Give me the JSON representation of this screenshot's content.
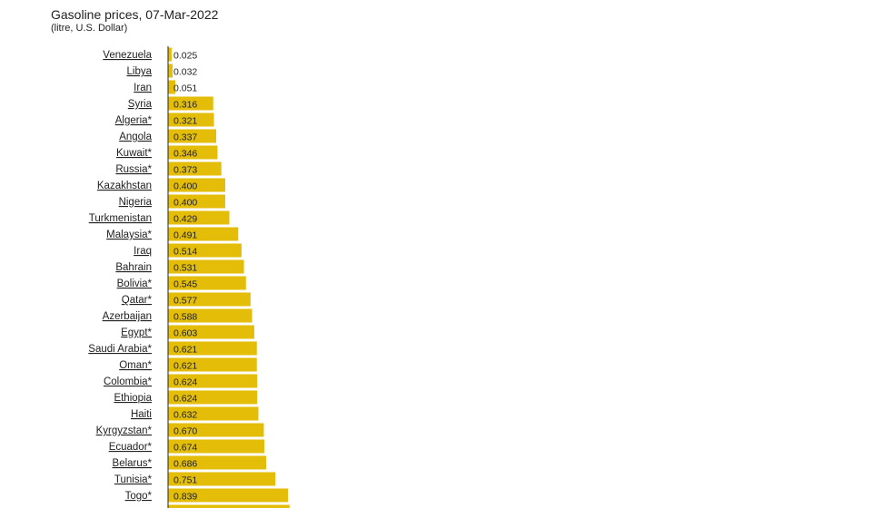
{
  "chart_data": {
    "type": "bar",
    "orientation": "horizontal",
    "title": "Gasoline prices, 07-Mar-2022",
    "subtitle": "(litre, U.S. Dollar)",
    "bar_color": "#e3bd08",
    "axis_color": "#222222",
    "categories": [
      "Venezuela",
      "Libya",
      "Iran",
      "Syria",
      "Algeria*",
      "Angola",
      "Kuwait*",
      "Russia*",
      "Kazakhstan",
      "Nigeria",
      "Turkmenistan",
      "Malaysia*",
      "Iraq",
      "Bahrain",
      "Bolivia*",
      "Qatar*",
      "Azerbaijan",
      "Egypt*",
      "Saudi Arabia*",
      "Oman*",
      "Colombia*",
      "Ethiopia",
      "Haiti",
      "Kyrgyzstan*",
      "Ecuador*",
      "Belarus*",
      "Tunisia*",
      "Togo*"
    ],
    "value_labels": [
      "0.025",
      "0.032",
      "0.051",
      "0.316",
      "0.321",
      "0.337",
      "0.346",
      "0.373",
      "0.400",
      "0.400",
      "0.429",
      "0.491",
      "0.514",
      "0.531",
      "0.545",
      "0.577",
      "0.588",
      "0.603",
      "0.621",
      "0.621",
      "0.624",
      "0.624",
      "0.632",
      "0.670",
      "0.674",
      "0.686",
      "0.751",
      "0.839"
    ],
    "values": [
      0.025,
      0.032,
      0.051,
      0.316,
      0.321,
      0.337,
      0.346,
      0.373,
      0.4,
      0.4,
      0.429,
      0.491,
      0.514,
      0.531,
      0.545,
      0.577,
      0.588,
      0.603,
      0.621,
      0.621,
      0.624,
      0.624,
      0.632,
      0.67,
      0.674,
      0.686,
      0.751,
      0.839
    ]
  }
}
